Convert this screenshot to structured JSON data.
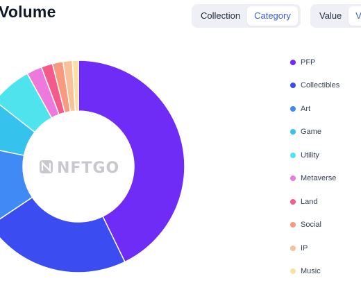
{
  "header": {
    "title": "Volume"
  },
  "toggles": {
    "group1": [
      "Collection",
      "Category"
    ],
    "group1_active": "Category",
    "group2": [
      "Value",
      "Vo"
    ],
    "group2_active": "Vo"
  },
  "watermark": "NFTGO",
  "chart_data": {
    "type": "pie",
    "donut": true,
    "categories": [
      "PFP",
      "Collectibles",
      "Art",
      "Game",
      "Utility",
      "Metaverse",
      "Land",
      "Social",
      "IP",
      "Music"
    ],
    "values": [
      42.2,
      22.5,
      12.4,
      7.3,
      6.3,
      2.3,
      1.7,
      1.6,
      1.4,
      0.9
    ],
    "colors": [
      "#6f2cf6",
      "#3b4cf0",
      "#3f8af5",
      "#35c3ee",
      "#4fe3ee",
      "#ee79dd",
      "#f25b8a",
      "#f79a7d",
      "#f9c19a",
      "#fbe0a2"
    ],
    "legend_position": "right"
  }
}
